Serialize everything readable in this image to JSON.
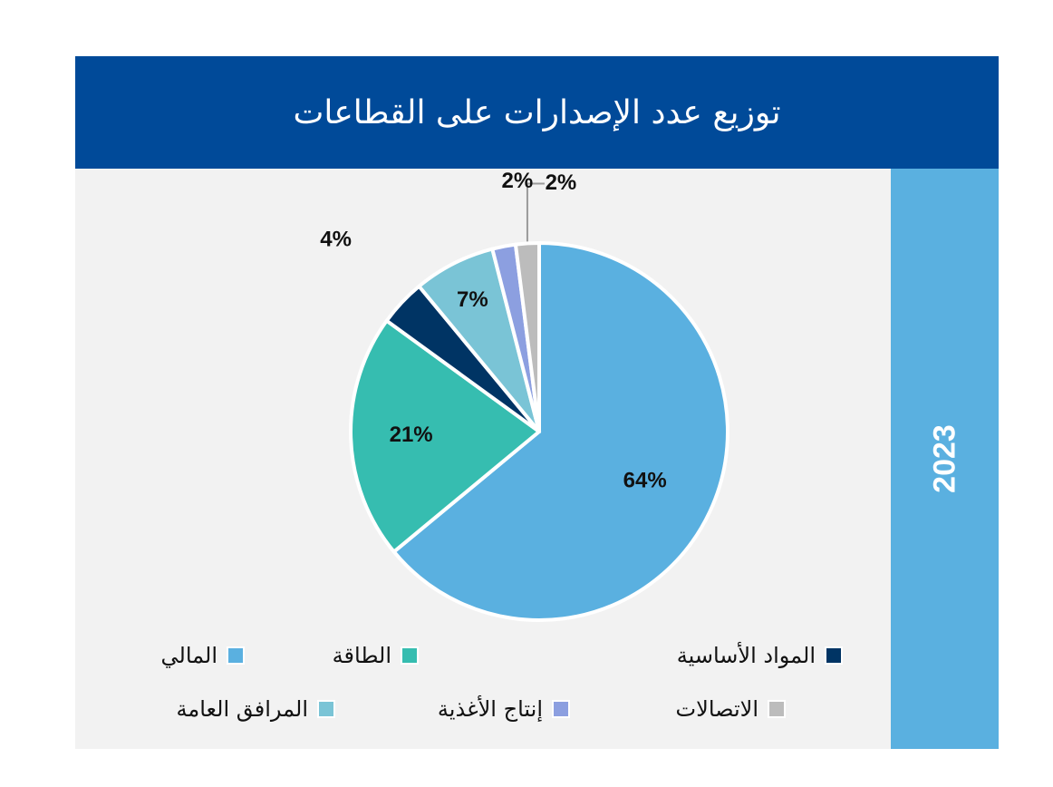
{
  "title": "توزيع عدد الإصدارات على القطاعات",
  "year": "2023",
  "chart_data": {
    "type": "pie",
    "start_angle_deg": 0,
    "direction": "clockwise",
    "slices": [
      {
        "name": "المالي",
        "value": 64,
        "label": "64%",
        "color": "#5ab0e0"
      },
      {
        "name": "الطاقة",
        "value": 21,
        "label": "21%",
        "color": "#36bdb0"
      },
      {
        "name": "المواد الأساسية",
        "value": 4,
        "label": "4%",
        "color": "#003464"
      },
      {
        "name": "المرافق العامة",
        "value": 7,
        "label": "7%",
        "color": "#7ac4d6"
      },
      {
        "name": "إنتاج الأغذية",
        "value": 2,
        "label": "2%",
        "color": "#8c9fe0"
      },
      {
        "name": "الاتصالات",
        "value": 2,
        "label": "2%",
        "color": "#bcbcbc"
      }
    ],
    "legend_placement": "bottom"
  },
  "legend": [
    {
      "label": "المالي",
      "color": "#5ab0e0"
    },
    {
      "label": "الطاقة",
      "color": "#36bdb0"
    },
    {
      "label": "المواد الأساسية",
      "color": "#003464"
    },
    {
      "label": "المرافق العامة",
      "color": "#7ac4d6"
    },
    {
      "label": "إنتاج الأغذية",
      "color": "#8c9fe0"
    },
    {
      "label": "الاتصالات",
      "color": "#bcbcbc"
    }
  ]
}
